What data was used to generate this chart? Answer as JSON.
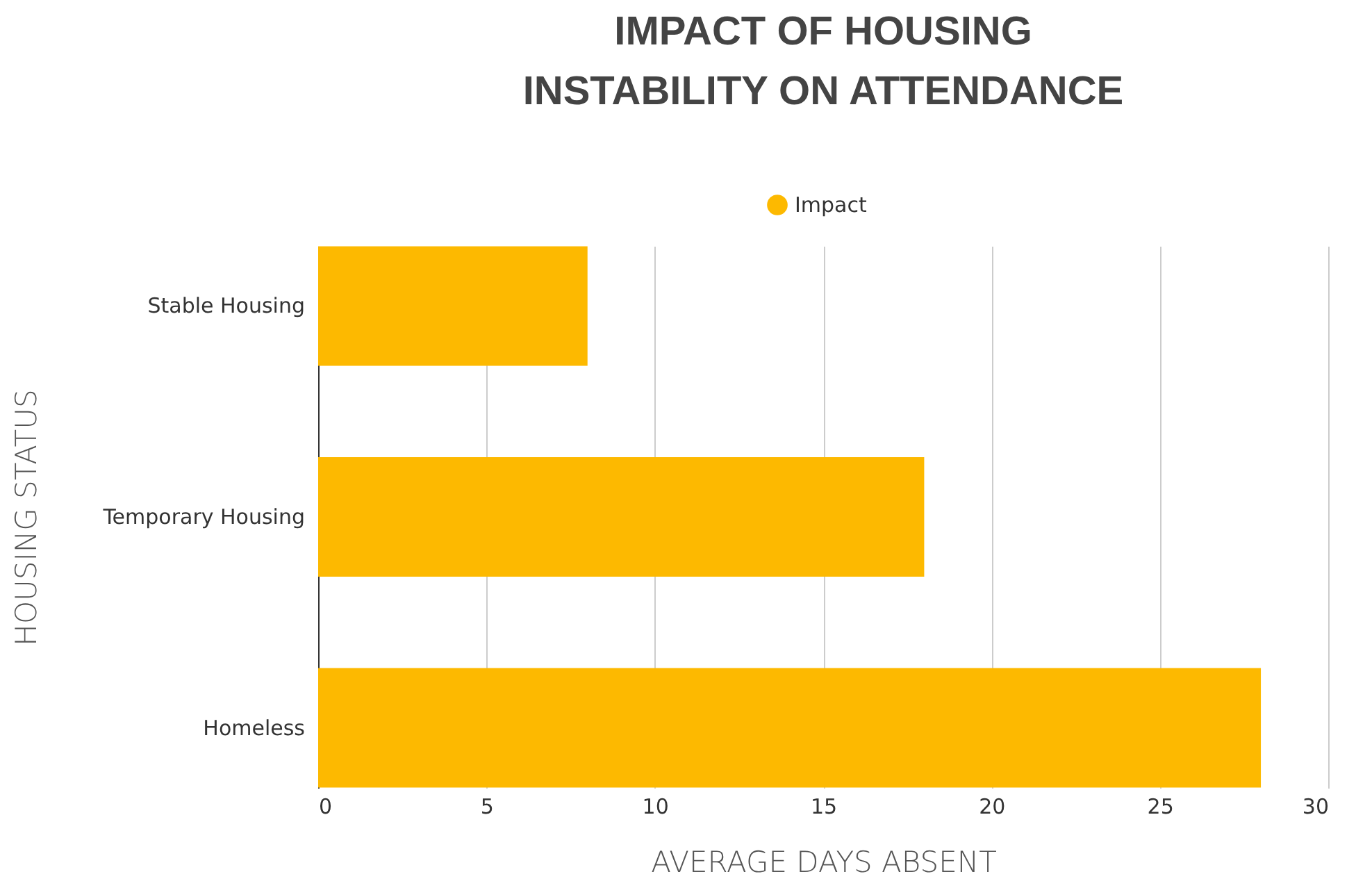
{
  "chart_data": {
    "type": "bar",
    "orientation": "horizontal",
    "title": "IMPACT OF HOUSING INSTABILITY ON ATTENDANCE",
    "xlabel": "AVERAGE DAYS ABSENT",
    "ylabel": "HOUSING STATUS",
    "categories": [
      "Stable Housing",
      "Temporary Housing",
      "Homeless"
    ],
    "series": [
      {
        "name": "Impact",
        "color": "#fdb900",
        "values": [
          8,
          18,
          28
        ]
      }
    ],
    "xlim": [
      0,
      30
    ],
    "xticks": [
      0,
      5,
      10,
      15,
      20,
      25,
      30
    ],
    "grid": "x",
    "legend": "top"
  }
}
